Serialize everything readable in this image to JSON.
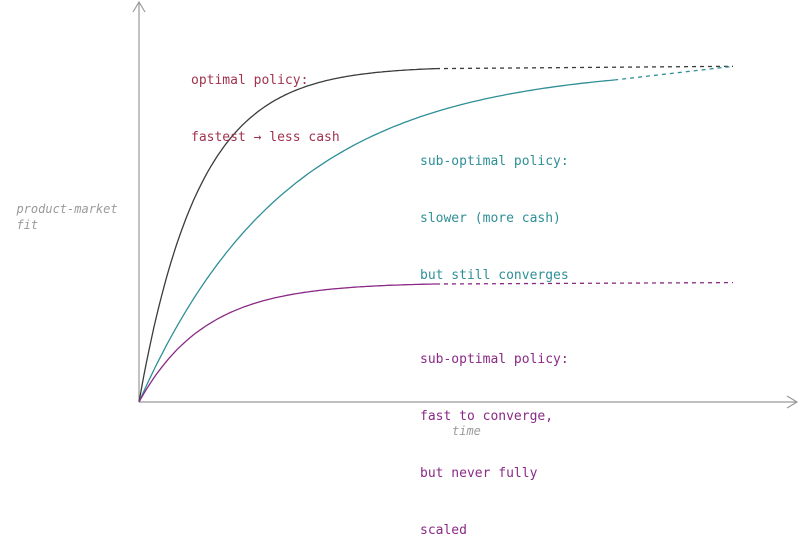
{
  "colors": {
    "axis": "#9a9a9a",
    "optimal": "#3c3c3c",
    "optimal_text": "#a0334e",
    "slow": "#2f8f97",
    "capped": "#8a2a86"
  },
  "axes": {
    "y_label": [
      "product-market",
      "fit"
    ],
    "x_label": "time"
  },
  "curves": [
    {
      "id": "optimal",
      "label": [
        "optimal policy:",
        "fastest → less cash"
      ],
      "level": 0.9,
      "rate": 10,
      "solid_until": 0.5,
      "dashed": true
    },
    {
      "id": "slow",
      "label": [
        "sub-optimal policy:",
        "slower (more cash)",
        "but still converges"
      ],
      "level": 0.9,
      "rate": 4,
      "solid_until": 0.8,
      "dashed": true
    },
    {
      "id": "capped",
      "label": [
        "sub-optimal policy:",
        "fast to converge,",
        "but never fully",
        "scaled"
      ],
      "level": 0.32,
      "rate": 9,
      "solid_until": 0.5,
      "dashed": true
    }
  ]
}
